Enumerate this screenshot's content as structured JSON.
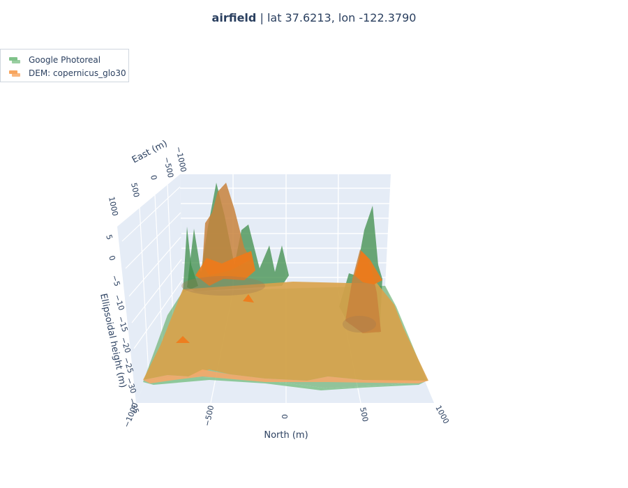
{
  "title": {
    "bold": "airfield",
    "sep": " | ",
    "coords": "lat 37.6213,  lon -122.3790"
  },
  "legend": [
    {
      "label": "Google Photoreal",
      "color": "#7fc28a"
    },
    {
      "label": "DEM: copernicus_glo30",
      "color": "#f7a55e"
    }
  ],
  "chart_data": {
    "type": "surface3d",
    "axes": {
      "x": {
        "title": "North (m)",
        "ticks": [
          "−1000",
          "−500",
          "0",
          "500",
          "1000"
        ],
        "range": [
          -1000,
          1000
        ]
      },
      "y": {
        "title": "East (m)",
        "ticks": [
          "−1000",
          "−500",
          "0",
          "500",
          "1000"
        ],
        "range": [
          -1000,
          1000
        ]
      },
      "z": {
        "title": "Ellipsoidal height (m)",
        "ticks": [
          "5",
          "0",
          "−5",
          "−10",
          "−15",
          "−20",
          "−25",
          "−30",
          "−35"
        ],
        "range": [
          -35,
          8
        ]
      }
    },
    "series": [
      {
        "name": "Google Photoreal",
        "color": "#2e8b3e",
        "peaks_north": [
          -600,
          -500,
          -430,
          -300,
          -220,
          520,
          560
        ],
        "peaks_height": [
          1,
          -3,
          -7,
          -6,
          -9,
          -3,
          -4
        ],
        "base_height": -28
      },
      {
        "name": "DEM: copernicus_glo30",
        "color": "#e8a040",
        "peaks_north": [
          -460,
          -440,
          450,
          520
        ],
        "peaks_height": [
          0,
          -7,
          -10,
          -10
        ],
        "base_height": -27
      }
    ]
  }
}
